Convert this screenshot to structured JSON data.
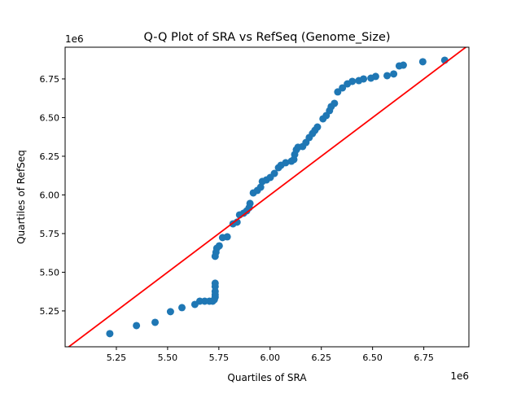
{
  "chart_data": {
    "type": "scatter",
    "title": "Q-Q Plot of SRA vs RefSeq (Genome_Size)",
    "xlabel": "Quartiles of SRA",
    "ylabel": "Quartiles of RefSeq",
    "x_offset_label": "1e6",
    "y_offset_label": "1e6",
    "xlim": [
      5.0,
      6.97
    ],
    "ylim": [
      5.018,
      6.955
    ],
    "grid": false,
    "xticks": [
      "5.25",
      "5.50",
      "5.75",
      "6.00",
      "6.25",
      "6.50",
      "6.75"
    ],
    "yticks": [
      "5.25",
      "5.50",
      "5.75",
      "6.00",
      "6.25",
      "6.50",
      "6.75"
    ],
    "point_color": "#1f77b4",
    "reference_line": {
      "type": "y=x",
      "color": "#ff0000"
    },
    "points": [
      [
        5.218,
        5.103
      ],
      [
        5.348,
        5.155
      ],
      [
        5.439,
        5.176
      ],
      [
        5.514,
        5.245
      ],
      [
        5.57,
        5.271
      ],
      [
        5.633,
        5.292
      ],
      [
        5.657,
        5.313
      ],
      [
        5.681,
        5.313
      ],
      [
        5.704,
        5.313
      ],
      [
        5.72,
        5.313
      ],
      [
        5.728,
        5.323
      ],
      [
        5.732,
        5.339
      ],
      [
        5.732,
        5.355
      ],
      [
        5.732,
        5.376
      ],
      [
        5.732,
        5.408
      ],
      [
        5.732,
        5.429
      ],
      [
        5.732,
        5.603
      ],
      [
        5.736,
        5.629
      ],
      [
        5.74,
        5.655
      ],
      [
        5.752,
        5.671
      ],
      [
        5.768,
        5.724
      ],
      [
        5.791,
        5.729
      ],
      [
        5.819,
        5.813
      ],
      [
        5.839,
        5.824
      ],
      [
        5.851,
        5.871
      ],
      [
        5.871,
        5.882
      ],
      [
        5.886,
        5.897
      ],
      [
        5.898,
        5.918
      ],
      [
        5.902,
        5.945
      ],
      [
        5.918,
        6.013
      ],
      [
        5.938,
        6.029
      ],
      [
        5.954,
        6.05
      ],
      [
        5.962,
        6.087
      ],
      [
        5.982,
        6.097
      ],
      [
        6.001,
        6.113
      ],
      [
        6.021,
        6.139
      ],
      [
        6.041,
        6.176
      ],
      [
        6.053,
        6.192
      ],
      [
        6.076,
        6.208
      ],
      [
        6.104,
        6.218
      ],
      [
        6.116,
        6.229
      ],
      [
        6.12,
        6.261
      ],
      [
        6.128,
        6.292
      ],
      [
        6.136,
        6.308
      ],
      [
        6.159,
        6.313
      ],
      [
        6.175,
        6.339
      ],
      [
        6.191,
        6.371
      ],
      [
        6.207,
        6.397
      ],
      [
        6.219,
        6.418
      ],
      [
        6.231,
        6.439
      ],
      [
        6.258,
        6.492
      ],
      [
        6.274,
        6.513
      ],
      [
        6.29,
        6.545
      ],
      [
        6.298,
        6.571
      ],
      [
        6.314,
        6.592
      ],
      [
        6.33,
        6.666
      ],
      [
        6.353,
        6.692
      ],
      [
        6.377,
        6.718
      ],
      [
        6.401,
        6.734
      ],
      [
        6.433,
        6.739
      ],
      [
        6.456,
        6.75
      ],
      [
        6.492,
        6.755
      ],
      [
        6.515,
        6.766
      ],
      [
        6.571,
        6.771
      ],
      [
        6.603,
        6.782
      ],
      [
        6.63,
        6.834
      ],
      [
        6.65,
        6.839
      ],
      [
        6.745,
        6.861
      ],
      [
        6.852,
        6.871
      ]
    ]
  }
}
